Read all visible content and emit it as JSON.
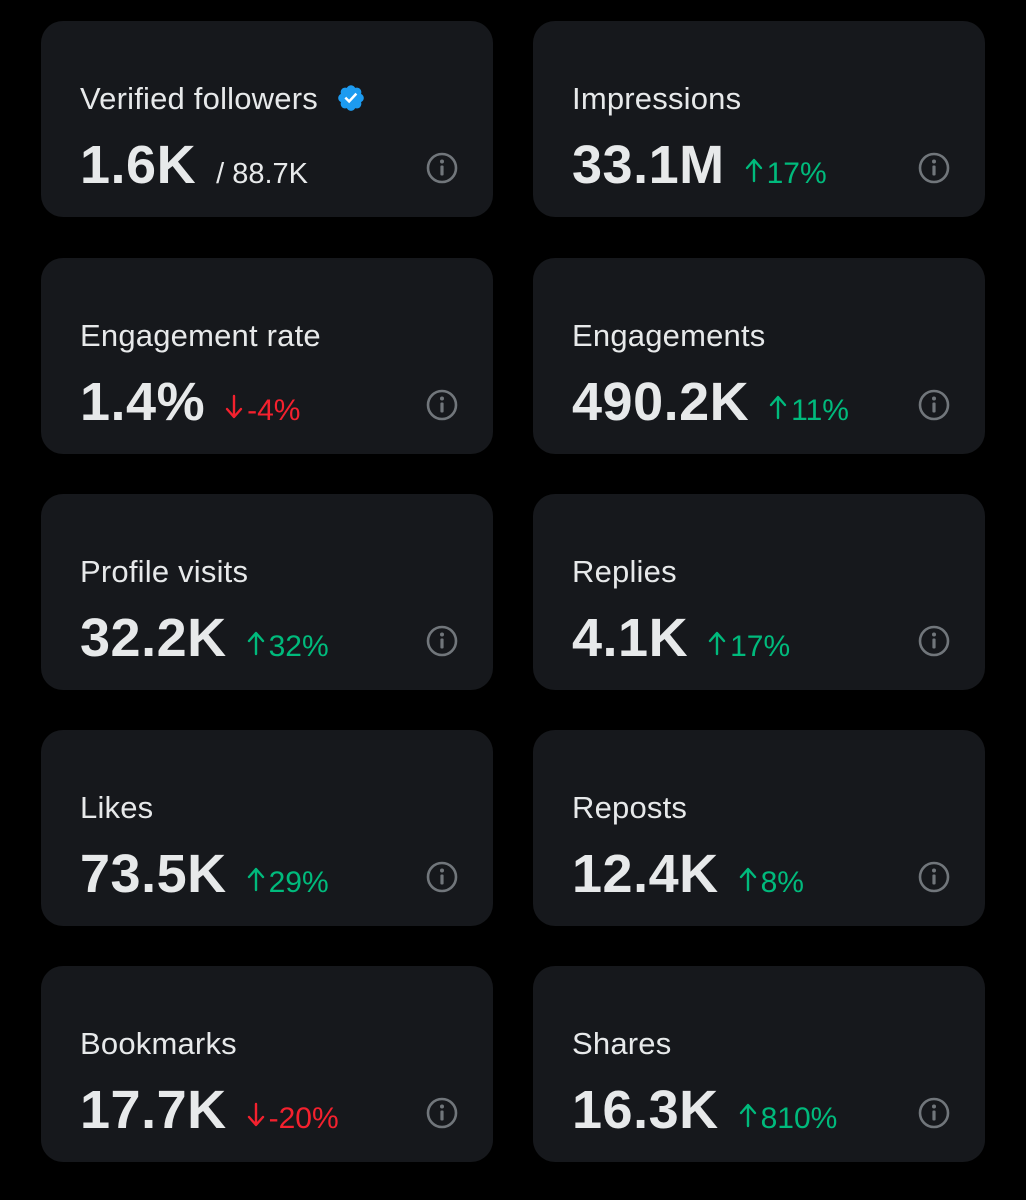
{
  "colors": {
    "background": "#000000",
    "card": "#16181c",
    "text": "#e7e9ea",
    "up": "#00ba7c",
    "down": "#f4212e",
    "icon": "#71767b",
    "verified": "#1d9bf0"
  },
  "metrics": [
    {
      "title": "Verified followers",
      "value": "1.6K",
      "sub": "/ 88.7K",
      "icon": "verified-badge-icon"
    },
    {
      "title": "Impressions",
      "value": "33.1M",
      "delta": "17%",
      "direction": "up"
    },
    {
      "title": "Engagement rate",
      "value": "1.4%",
      "delta": "-4%",
      "direction": "down"
    },
    {
      "title": "Engagements",
      "value": "490.2K",
      "delta": "11%",
      "direction": "up"
    },
    {
      "title": "Profile visits",
      "value": "32.2K",
      "delta": "32%",
      "direction": "up"
    },
    {
      "title": "Replies",
      "value": "4.1K",
      "delta": "17%",
      "direction": "up"
    },
    {
      "title": "Likes",
      "value": "73.5K",
      "delta": "29%",
      "direction": "up"
    },
    {
      "title": "Reposts",
      "value": "12.4K",
      "delta": "8%",
      "direction": "up"
    },
    {
      "title": "Bookmarks",
      "value": "17.7K",
      "delta": "-20%",
      "direction": "down"
    },
    {
      "title": "Shares",
      "value": "16.3K",
      "delta": "810%",
      "direction": "up"
    }
  ]
}
